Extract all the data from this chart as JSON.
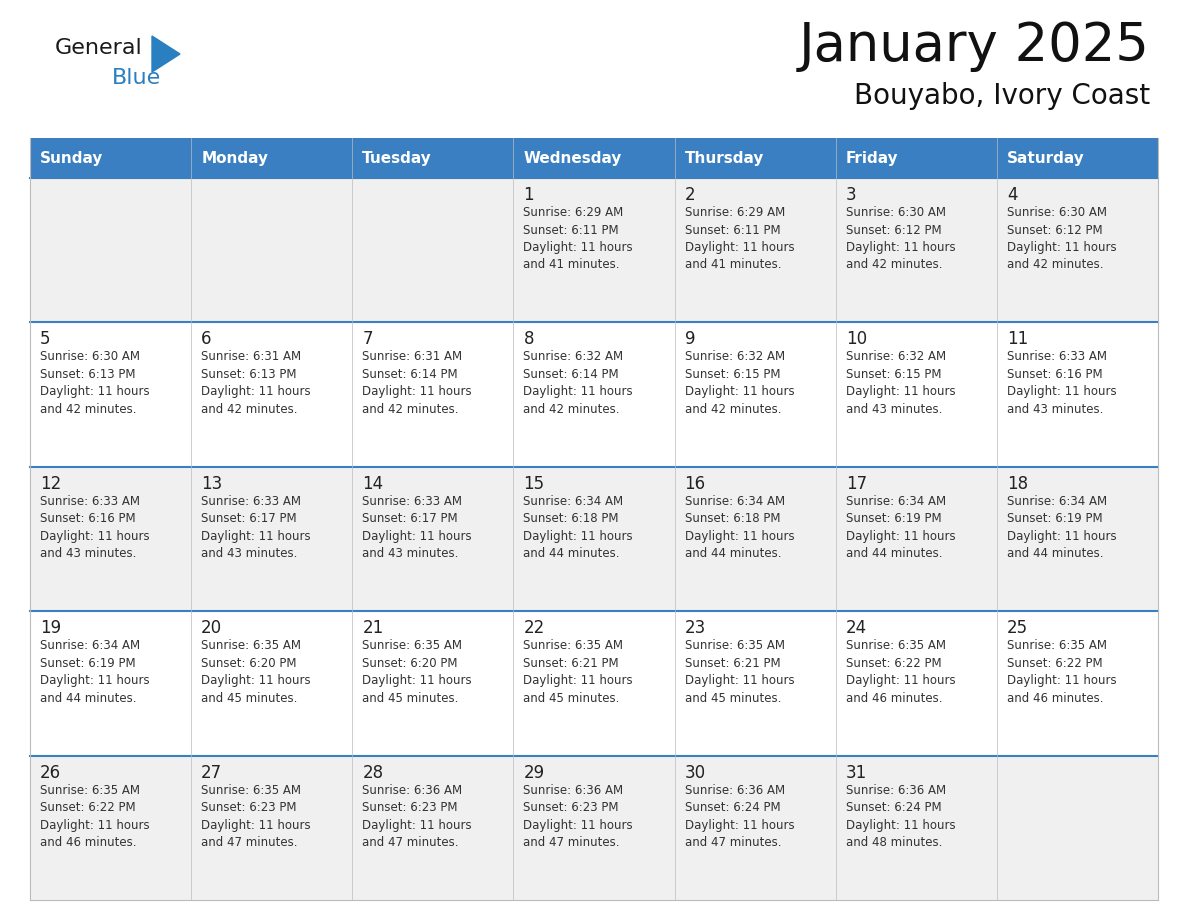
{
  "title": "January 2025",
  "subtitle": "Bouyabo, Ivory Coast",
  "header_bg": "#3A7FC1",
  "header_text": "#FFFFFF",
  "row_bg_odd": "#F0F0F0",
  "row_bg_even": "#FFFFFF",
  "day_number_color": "#222222",
  "text_color": "#333333",
  "days_of_week": [
    "Sunday",
    "Monday",
    "Tuesday",
    "Wednesday",
    "Thursday",
    "Friday",
    "Saturday"
  ],
  "calendar": [
    [
      {
        "day": "",
        "info": ""
      },
      {
        "day": "",
        "info": ""
      },
      {
        "day": "",
        "info": ""
      },
      {
        "day": "1",
        "info": "Sunrise: 6:29 AM\nSunset: 6:11 PM\nDaylight: 11 hours\nand 41 minutes."
      },
      {
        "day": "2",
        "info": "Sunrise: 6:29 AM\nSunset: 6:11 PM\nDaylight: 11 hours\nand 41 minutes."
      },
      {
        "day": "3",
        "info": "Sunrise: 6:30 AM\nSunset: 6:12 PM\nDaylight: 11 hours\nand 42 minutes."
      },
      {
        "day": "4",
        "info": "Sunrise: 6:30 AM\nSunset: 6:12 PM\nDaylight: 11 hours\nand 42 minutes."
      }
    ],
    [
      {
        "day": "5",
        "info": "Sunrise: 6:30 AM\nSunset: 6:13 PM\nDaylight: 11 hours\nand 42 minutes."
      },
      {
        "day": "6",
        "info": "Sunrise: 6:31 AM\nSunset: 6:13 PM\nDaylight: 11 hours\nand 42 minutes."
      },
      {
        "day": "7",
        "info": "Sunrise: 6:31 AM\nSunset: 6:14 PM\nDaylight: 11 hours\nand 42 minutes."
      },
      {
        "day": "8",
        "info": "Sunrise: 6:32 AM\nSunset: 6:14 PM\nDaylight: 11 hours\nand 42 minutes."
      },
      {
        "day": "9",
        "info": "Sunrise: 6:32 AM\nSunset: 6:15 PM\nDaylight: 11 hours\nand 42 minutes."
      },
      {
        "day": "10",
        "info": "Sunrise: 6:32 AM\nSunset: 6:15 PM\nDaylight: 11 hours\nand 43 minutes."
      },
      {
        "day": "11",
        "info": "Sunrise: 6:33 AM\nSunset: 6:16 PM\nDaylight: 11 hours\nand 43 minutes."
      }
    ],
    [
      {
        "day": "12",
        "info": "Sunrise: 6:33 AM\nSunset: 6:16 PM\nDaylight: 11 hours\nand 43 minutes."
      },
      {
        "day": "13",
        "info": "Sunrise: 6:33 AM\nSunset: 6:17 PM\nDaylight: 11 hours\nand 43 minutes."
      },
      {
        "day": "14",
        "info": "Sunrise: 6:33 AM\nSunset: 6:17 PM\nDaylight: 11 hours\nand 43 minutes."
      },
      {
        "day": "15",
        "info": "Sunrise: 6:34 AM\nSunset: 6:18 PM\nDaylight: 11 hours\nand 44 minutes."
      },
      {
        "day": "16",
        "info": "Sunrise: 6:34 AM\nSunset: 6:18 PM\nDaylight: 11 hours\nand 44 minutes."
      },
      {
        "day": "17",
        "info": "Sunrise: 6:34 AM\nSunset: 6:19 PM\nDaylight: 11 hours\nand 44 minutes."
      },
      {
        "day": "18",
        "info": "Sunrise: 6:34 AM\nSunset: 6:19 PM\nDaylight: 11 hours\nand 44 minutes."
      }
    ],
    [
      {
        "day": "19",
        "info": "Sunrise: 6:34 AM\nSunset: 6:19 PM\nDaylight: 11 hours\nand 44 minutes."
      },
      {
        "day": "20",
        "info": "Sunrise: 6:35 AM\nSunset: 6:20 PM\nDaylight: 11 hours\nand 45 minutes."
      },
      {
        "day": "21",
        "info": "Sunrise: 6:35 AM\nSunset: 6:20 PM\nDaylight: 11 hours\nand 45 minutes."
      },
      {
        "day": "22",
        "info": "Sunrise: 6:35 AM\nSunset: 6:21 PM\nDaylight: 11 hours\nand 45 minutes."
      },
      {
        "day": "23",
        "info": "Sunrise: 6:35 AM\nSunset: 6:21 PM\nDaylight: 11 hours\nand 45 minutes."
      },
      {
        "day": "24",
        "info": "Sunrise: 6:35 AM\nSunset: 6:22 PM\nDaylight: 11 hours\nand 46 minutes."
      },
      {
        "day": "25",
        "info": "Sunrise: 6:35 AM\nSunset: 6:22 PM\nDaylight: 11 hours\nand 46 minutes."
      }
    ],
    [
      {
        "day": "26",
        "info": "Sunrise: 6:35 AM\nSunset: 6:22 PM\nDaylight: 11 hours\nand 46 minutes."
      },
      {
        "day": "27",
        "info": "Sunrise: 6:35 AM\nSunset: 6:23 PM\nDaylight: 11 hours\nand 47 minutes."
      },
      {
        "day": "28",
        "info": "Sunrise: 6:36 AM\nSunset: 6:23 PM\nDaylight: 11 hours\nand 47 minutes."
      },
      {
        "day": "29",
        "info": "Sunrise: 6:36 AM\nSunset: 6:23 PM\nDaylight: 11 hours\nand 47 minutes."
      },
      {
        "day": "30",
        "info": "Sunrise: 6:36 AM\nSunset: 6:24 PM\nDaylight: 11 hours\nand 47 minutes."
      },
      {
        "day": "31",
        "info": "Sunrise: 6:36 AM\nSunset: 6:24 PM\nDaylight: 11 hours\nand 48 minutes."
      },
      {
        "day": "",
        "info": ""
      }
    ]
  ],
  "logo_general_color": "#1a1a1a",
  "logo_blue_color": "#2A7FC1",
  "logo_triangle_color": "#2A7FC1",
  "separator_color": "#3A7FC1",
  "border_color": "#BBBBBB"
}
